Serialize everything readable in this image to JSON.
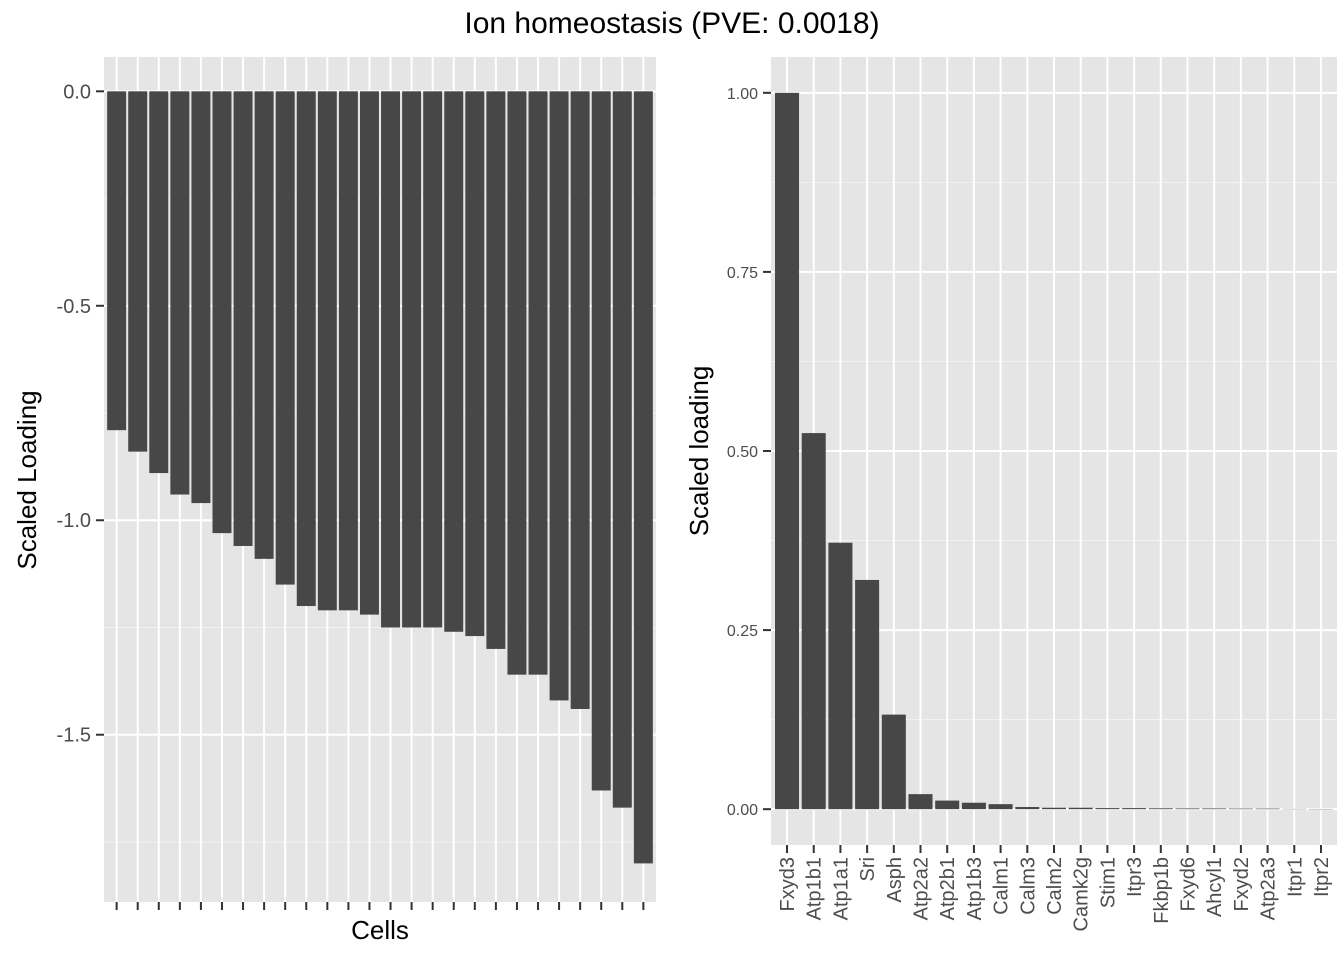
{
  "figure": {
    "title": "Ion homeostasis (PVE: 0.0018)"
  },
  "colors": {
    "panel_background": "#e5e5e5",
    "grid_major": "#ffffff",
    "bar_fill": "#474747",
    "axis_text": "#4d4d4d",
    "tick": "#333333"
  },
  "chart_data": [
    {
      "type": "bar",
      "xlabel": "Cells",
      "ylabel": "Scaled Loading",
      "ylim": [
        -1.89,
        0.08
      ],
      "yticks": [
        0.0,
        -0.5,
        -1.0,
        -1.5
      ],
      "ytick_labels": [
        "0.0",
        "-0.5",
        "-1.0",
        "-1.5"
      ],
      "x_tick_labels_shown": false,
      "grid": true,
      "values": [
        -0.79,
        -0.84,
        -0.89,
        -0.94,
        -0.96,
        -1.03,
        -1.06,
        -1.09,
        -1.15,
        -1.2,
        -1.21,
        -1.21,
        -1.22,
        -1.25,
        -1.25,
        -1.25,
        -1.26,
        -1.27,
        -1.3,
        -1.36,
        -1.36,
        -1.42,
        -1.44,
        -1.63,
        -1.67,
        -1.8
      ]
    },
    {
      "type": "bar",
      "xlabel": "",
      "ylabel": "Scaled loading",
      "ylim": [
        -0.05,
        1.05
      ],
      "yticks": [
        0.0,
        0.25,
        0.5,
        0.75,
        1.0
      ],
      "ytick_labels": [
        "0.00",
        "0.25",
        "0.50",
        "0.75",
        "1.00"
      ],
      "grid": true,
      "categories": [
        "Fxyd3",
        "Atp1b1",
        "Atp1a1",
        "Sri",
        "Asph",
        "Atp2a2",
        "Atp2b1",
        "Atp1b3",
        "Calm1",
        "Calm3",
        "Calm2",
        "Camk2g",
        "Stim1",
        "Itpr3",
        "Fkbp1b",
        "Fxyd6",
        "Ahcyl1",
        "Fxyd2",
        "Atp2a3",
        "Itpr1",
        "Itpr2"
      ],
      "values": [
        1.0,
        0.525,
        0.372,
        0.32,
        0.132,
        0.021,
        0.012,
        0.009,
        0.007,
        0.003,
        0.002,
        0.002,
        0.0015,
        0.0015,
        0.0012,
        0.001,
        0.001,
        0.0008,
        0.0008,
        0.0004,
        0.0003
      ]
    }
  ]
}
